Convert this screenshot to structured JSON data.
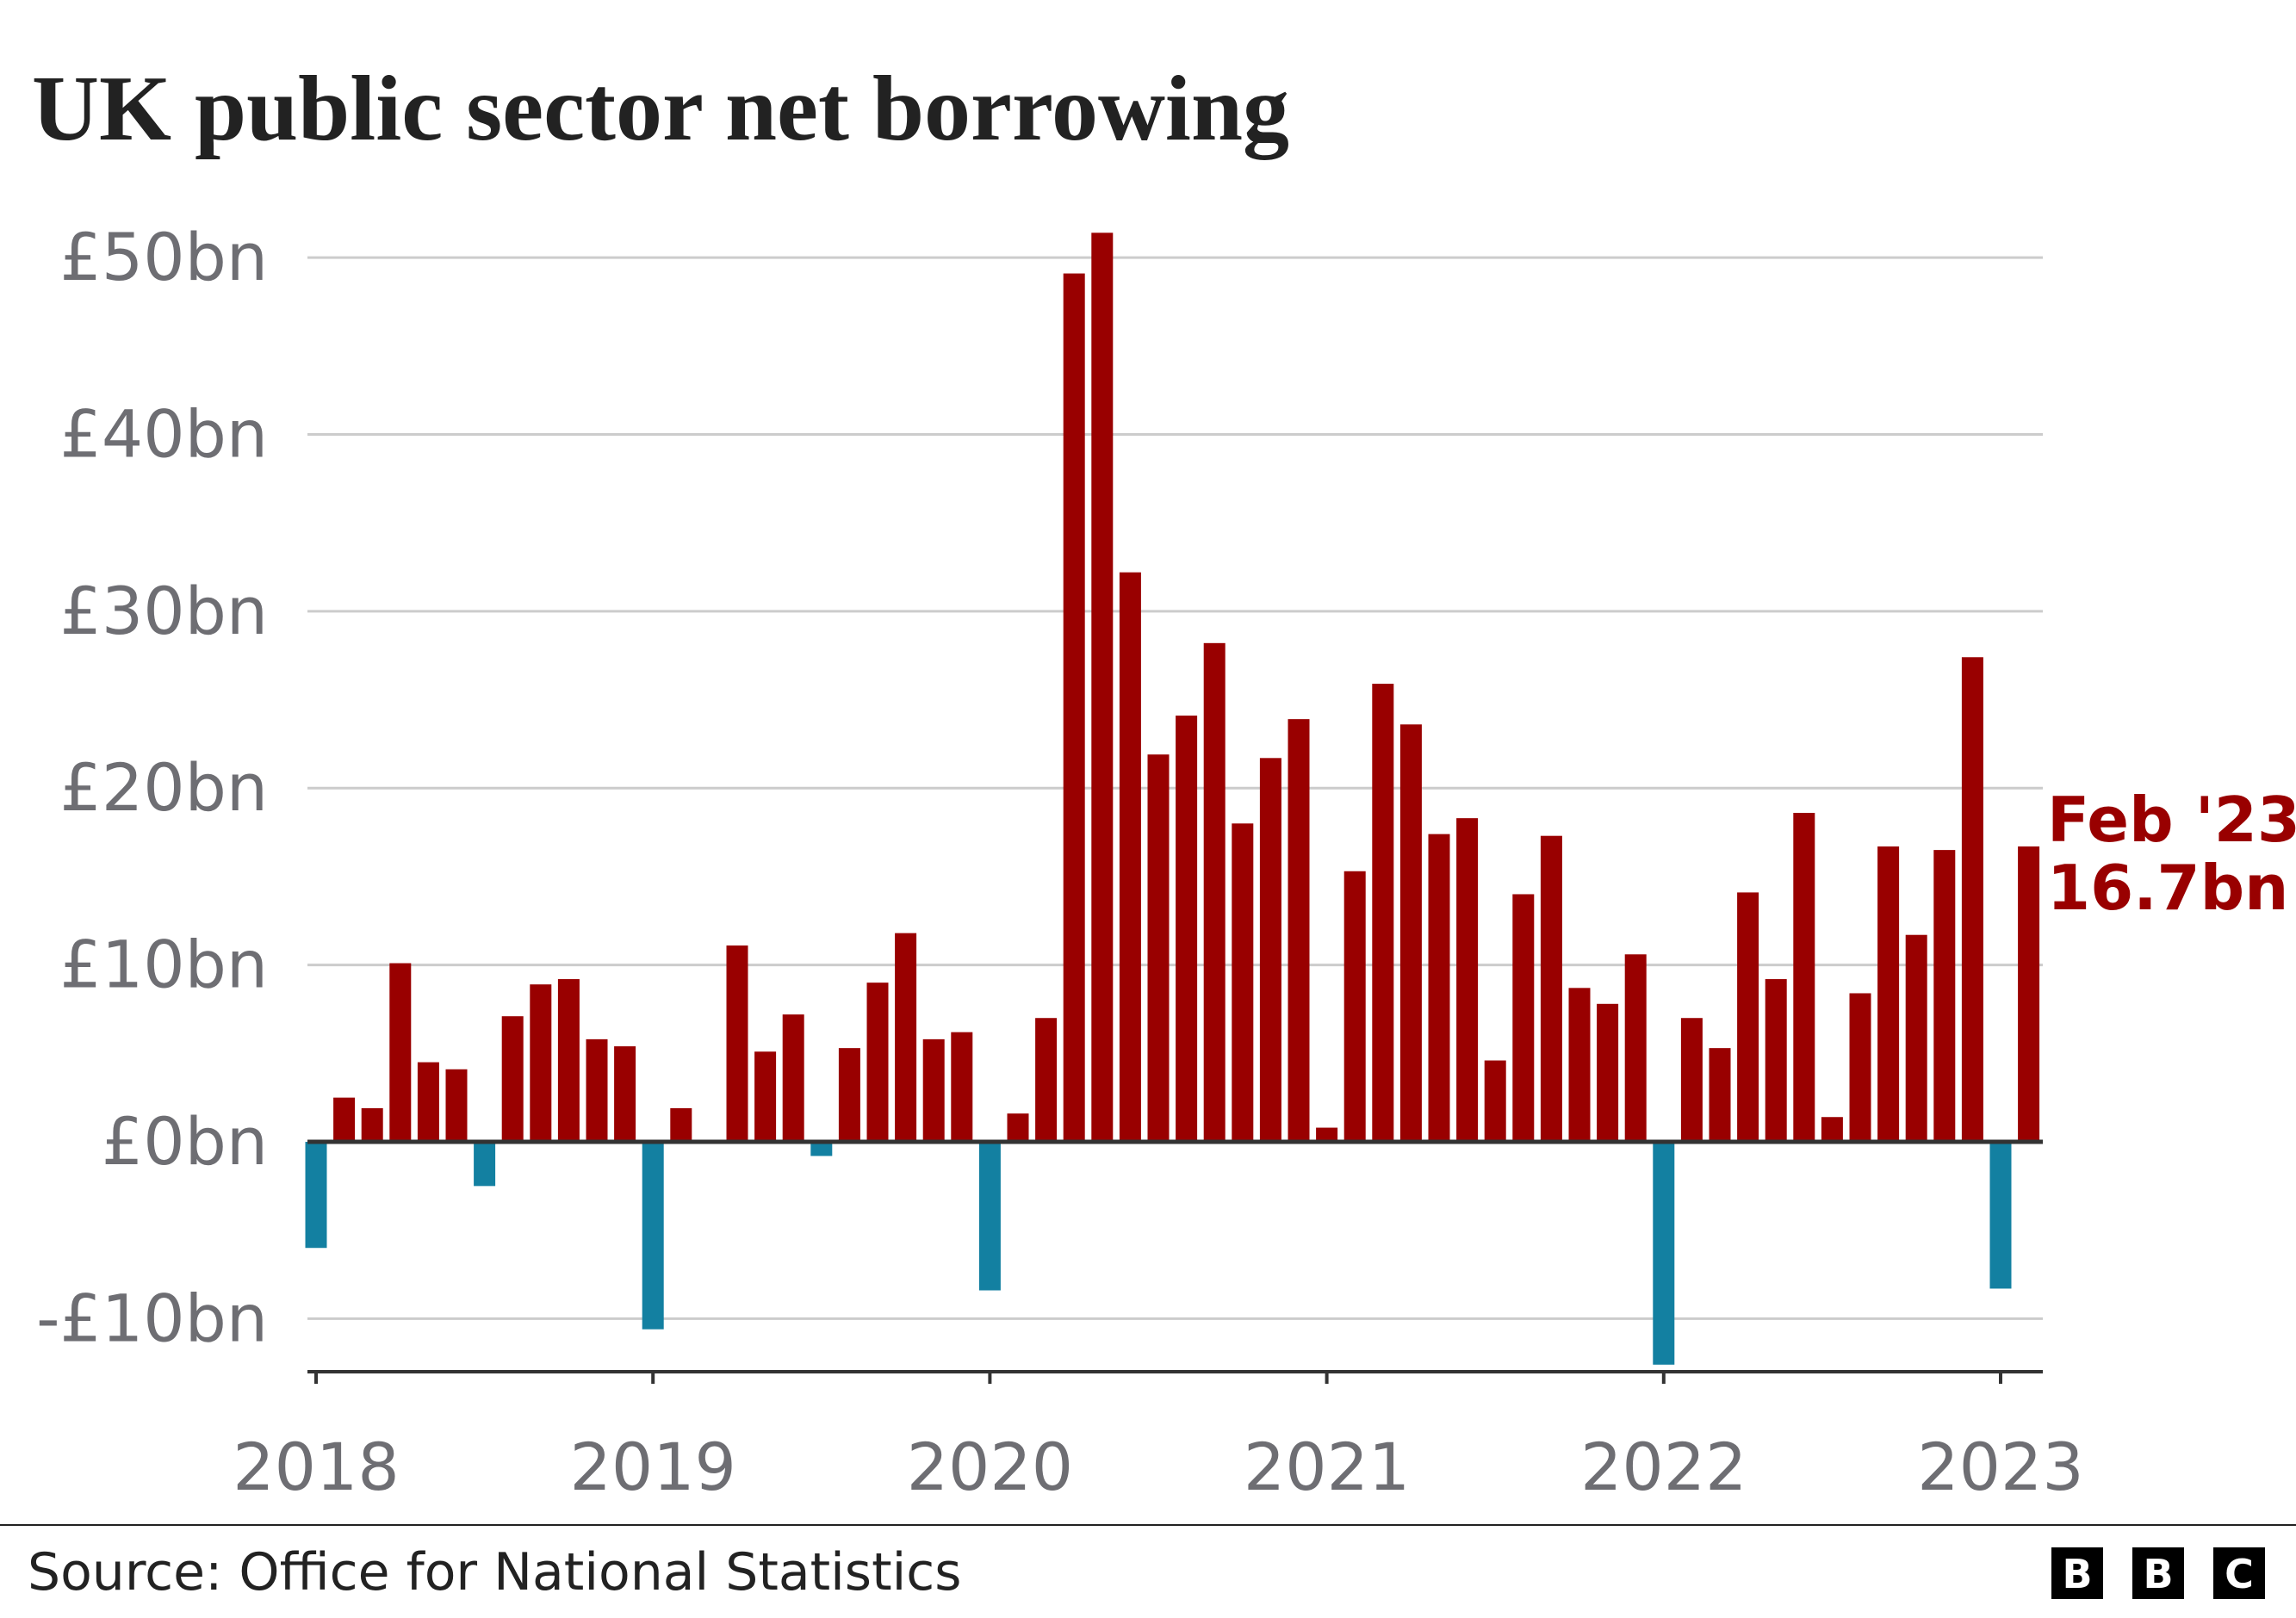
{
  "chart_data": {
    "type": "bar",
    "title": "UK public sector net borrowing",
    "categories": [
      "2018",
      null,
      null,
      null,
      null,
      null,
      null,
      null,
      null,
      null,
      null,
      null,
      "2019",
      null,
      null,
      null,
      null,
      null,
      null,
      null,
      null,
      null,
      null,
      null,
      "2020",
      null,
      null,
      null,
      null,
      null,
      null,
      null,
      null,
      null,
      null,
      null,
      "2021",
      null,
      null,
      null,
      null,
      null,
      null,
      null,
      null,
      null,
      null,
      null,
      "2022",
      null,
      null,
      null,
      null,
      null,
      null,
      null,
      null,
      null,
      null,
      null,
      "2023",
      null
    ],
    "values": [
      -6.0,
      2.5,
      1.9,
      10.1,
      4.5,
      4.1,
      -2.5,
      7.1,
      8.9,
      9.2,
      5.8,
      5.4,
      -10.6,
      1.9,
      0,
      11.1,
      5.1,
      7.2,
      -0.8,
      5.3,
      9.0,
      11.8,
      5.8,
      6.2,
      -8.4,
      1.6,
      7.0,
      49.1,
      51.4,
      32.2,
      21.9,
      24.1,
      28.2,
      18.0,
      21.7,
      23.9,
      0.8,
      15.3,
      25.9,
      23.6,
      17.4,
      18.3,
      4.6,
      14.0,
      17.3,
      8.7,
      7.8,
      10.6,
      -12.6,
      7.0,
      5.3,
      14.1,
      9.2,
      18.6,
      1.4,
      8.4,
      16.7,
      11.7,
      16.5,
      27.4,
      -8.3,
      16.7
    ],
    "color": "#990000",
    "negative_color": "#1380a1",
    "ylim": [
      -13,
      52
    ],
    "yticks": [
      {
        "value": -10,
        "label": "-£10bn"
      },
      {
        "value": 0,
        "label": "£0bn"
      },
      {
        "value": 10,
        "label": "£10bn"
      },
      {
        "value": 20,
        "label": "£20bn"
      },
      {
        "value": 30,
        "label": "£30bn"
      },
      {
        "value": 40,
        "label": "£40bn"
      },
      {
        "value": 50,
        "label": "£50bn"
      }
    ],
    "grid": true,
    "annotation": [
      "Feb '23",
      "16.7bn"
    ],
    "source": "Source: Office for National Statistics",
    "logo": [
      "B",
      "B",
      "C"
    ]
  }
}
